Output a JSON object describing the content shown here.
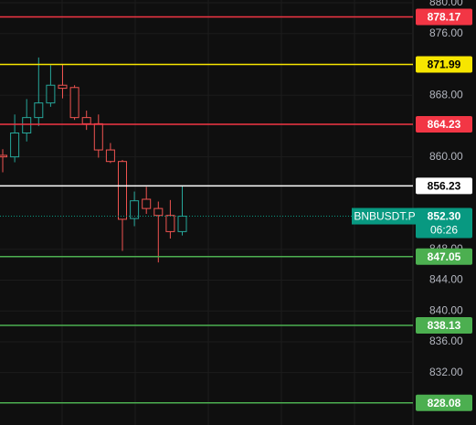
{
  "chart_data": {
    "type": "candlestick",
    "symbol": "BNBUSDT.P",
    "countdown": "06:26",
    "categories": [
      null,
      null,
      null,
      null,
      null,
      null,
      null,
      null,
      null,
      null,
      null,
      null,
      null,
      null,
      null,
      null
    ],
    "open": [
      860.2,
      860.0,
      863.1,
      865.1,
      867.0,
      869.3,
      869.0,
      865.1,
      864.3,
      860.9,
      859.4,
      852.0,
      854.5,
      853.3,
      852.4,
      850.3
    ],
    "high": [
      861.0,
      865.5,
      867.5,
      872.9,
      871.9,
      872.0,
      869.3,
      866.0,
      865.5,
      861.8,
      859.6,
      855.5,
      856.1,
      854.2,
      854.4,
      856.2
    ],
    "low": [
      858.0,
      859.3,
      862.0,
      864.0,
      866.5,
      867.6,
      864.8,
      863.5,
      859.9,
      859.2,
      847.8,
      851.0,
      852.6,
      846.3,
      849.4,
      849.8
    ],
    "close": [
      860.0,
      863.1,
      865.1,
      867.0,
      869.3,
      868.9,
      865.1,
      864.3,
      860.9,
      859.4,
      851.9,
      854.3,
      853.3,
      852.4,
      850.3,
      852.3
    ],
    "up_color": "#26a69a",
    "down_color": "#ef5350",
    "ylim": [
      825.2,
      880.36
    ],
    "yticks": [
      {
        "value": 880,
        "label": "880.00"
      },
      {
        "value": 876,
        "label": "876.00"
      },
      {
        "value": 868,
        "label": "868.00"
      },
      {
        "value": 860,
        "label": "860.00"
      },
      {
        "value": 848,
        "label": "848.00"
      },
      {
        "value": 844,
        "label": "844.00"
      },
      {
        "value": 840,
        "label": "840.00"
      },
      {
        "value": 836,
        "label": "836.00"
      },
      {
        "value": 832,
        "label": "832.00"
      }
    ],
    "grid": true,
    "levels": [
      {
        "value": 878.17,
        "color": "#f23645"
      },
      {
        "value": 871.99,
        "color": "#f7e600"
      },
      {
        "value": 864.23,
        "color": "#f23645"
      },
      {
        "value": 856.23,
        "color": "#ffffff"
      },
      {
        "value": 847.05,
        "color": "#4caf50"
      },
      {
        "value": 838.13,
        "color": "#4caf50"
      },
      {
        "value": 828.08,
        "color": "#4caf50"
      }
    ],
    "current_price": {
      "value": 852.3,
      "label": "852.30"
    },
    "current_color": "#089981"
  }
}
